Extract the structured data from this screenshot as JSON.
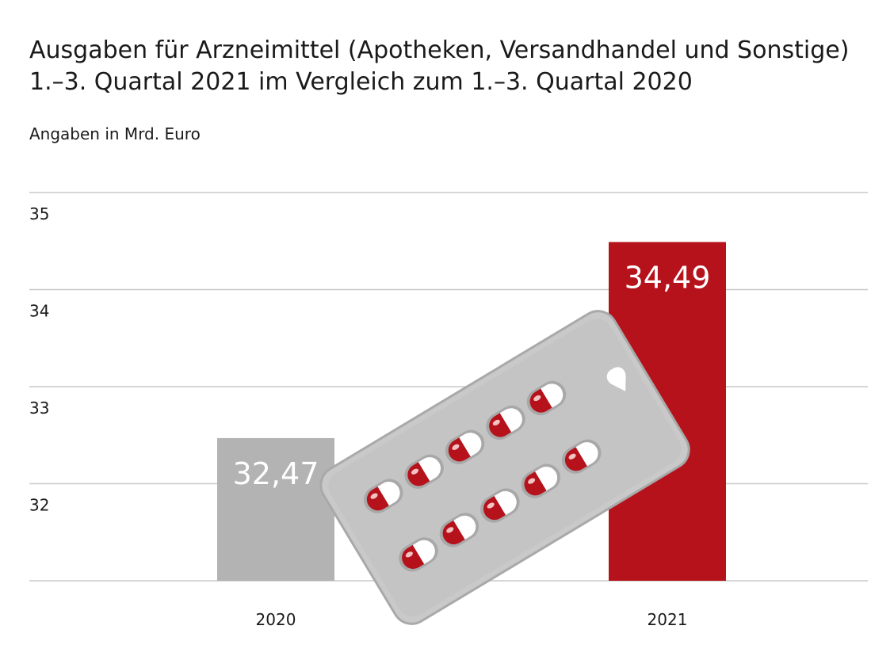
{
  "chart_data": {
    "type": "bar",
    "title": "Ausgaben für Arzneimittel (Apotheken, Versandhandel und Sonstige)",
    "subtitle": "1.–3. Quartal 2021 im Vergleich zum 1.–3. Quartal 2020",
    "units_note": "Angaben in Mrd. Euro",
    "categories": [
      "2020",
      "2021"
    ],
    "values": [
      32.47,
      34.49
    ],
    "value_labels": [
      "32,47",
      "34,49"
    ],
    "yticks": [
      32,
      33,
      34,
      35
    ],
    "ytick_labels": [
      "32",
      "33",
      "34",
      "35"
    ],
    "ylim": [
      31,
      35.25
    ],
    "grid": true,
    "colors": {
      "2020": "#b3b3b3",
      "2021": "#b5121b",
      "grid": "#c8c8c8",
      "pill_red": "#b5121b",
      "blister": "#c4c4c4"
    }
  }
}
